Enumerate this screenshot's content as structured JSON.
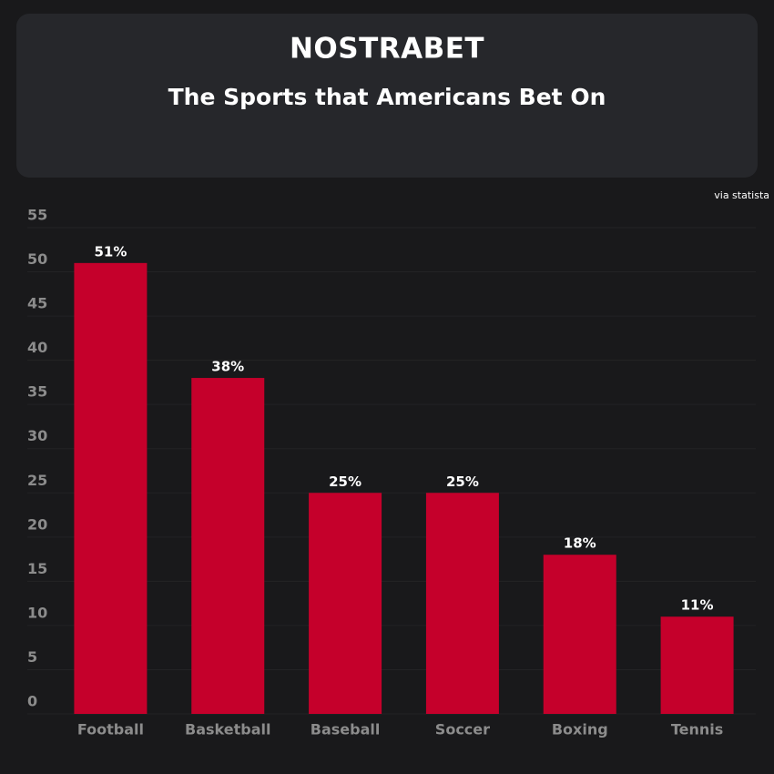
{
  "brand": "NOSTRABET",
  "chart_data": {
    "type": "bar",
    "title": "The Sports that Americans Bet On",
    "source": "via statista",
    "categories": [
      "Football",
      "Basketball",
      "Baseball",
      "Soccer",
      "Boxing",
      "Tennis"
    ],
    "values": [
      51,
      38,
      25,
      25,
      18,
      11
    ],
    "value_labels": [
      "51%",
      "38%",
      "25%",
      "25%",
      "18%",
      "11%"
    ],
    "color": "#c5002b",
    "ylim": [
      0,
      55
    ],
    "yticks": [
      0,
      5,
      10,
      15,
      20,
      25,
      30,
      35,
      40,
      45,
      50,
      55
    ],
    "grid": true
  }
}
